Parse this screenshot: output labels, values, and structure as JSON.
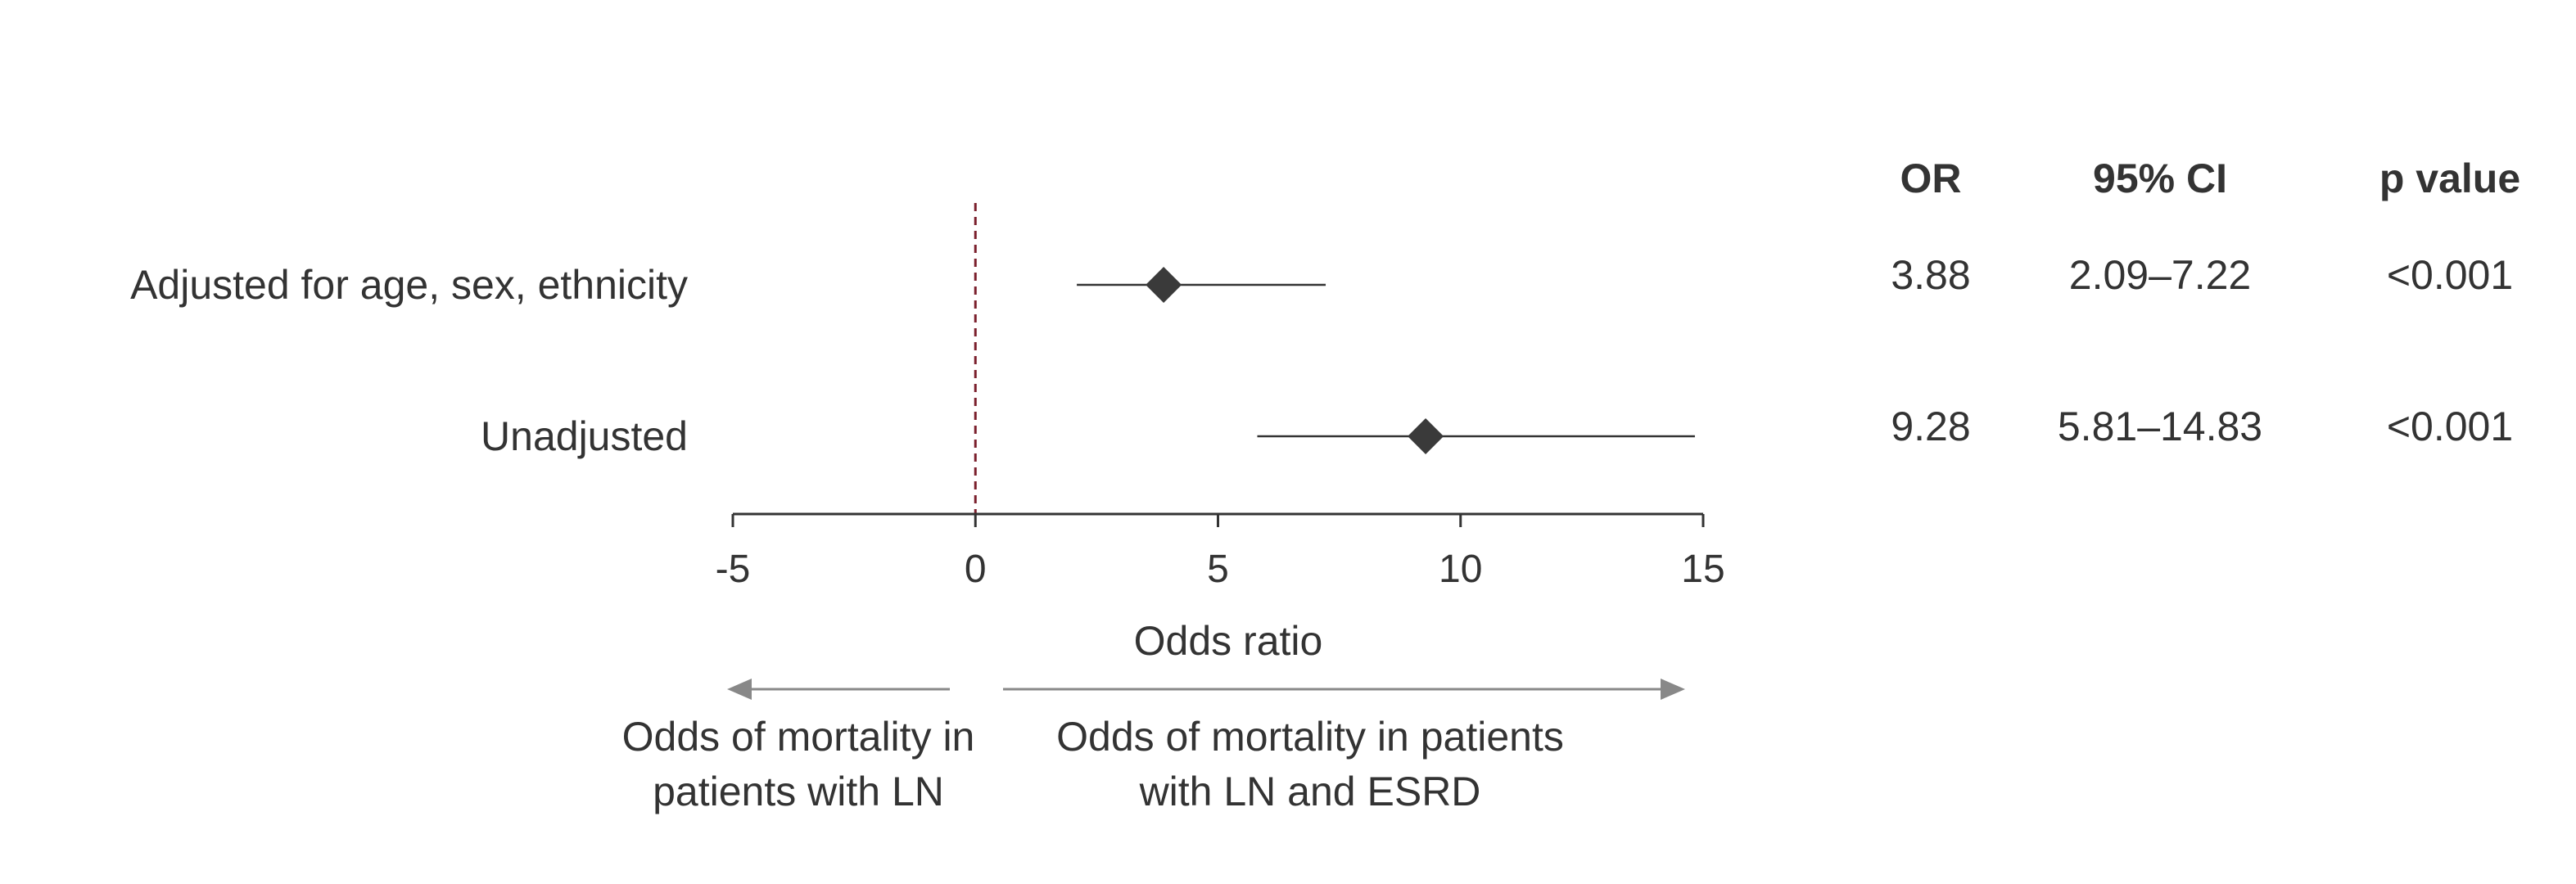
{
  "chart_data": {
    "type": "forest",
    "xlabel": "Odds ratio",
    "xlim": [
      -5,
      15
    ],
    "xticks": [
      -5,
      0,
      5,
      10,
      15
    ],
    "reference_line": 0,
    "columns": [
      "OR",
      "95% CI",
      "p value"
    ],
    "rows": [
      {
        "label": "Adjusted for age, sex, ethnicity",
        "or": 3.88,
        "ci_low": 2.09,
        "ci_high": 7.22,
        "or_text": "3.88",
        "ci_text": "2.09–7.22",
        "p_text": "<0.001"
      },
      {
        "label": "Unadjusted",
        "or": 9.28,
        "ci_low": 5.81,
        "ci_high": 14.83,
        "or_text": "9.28",
        "ci_text": "5.81–14.83",
        "p_text": "<0.001"
      }
    ],
    "direction_labels": {
      "left": [
        "Odds of mortality in",
        "patients with LN"
      ],
      "right": [
        "Odds of mortality in patients",
        "with LN and ESRD"
      ]
    }
  },
  "colors": {
    "text": "#333333",
    "marker": "#3a3a3a",
    "reference_line": "#7a1f2b",
    "arrow": "#888888"
  }
}
